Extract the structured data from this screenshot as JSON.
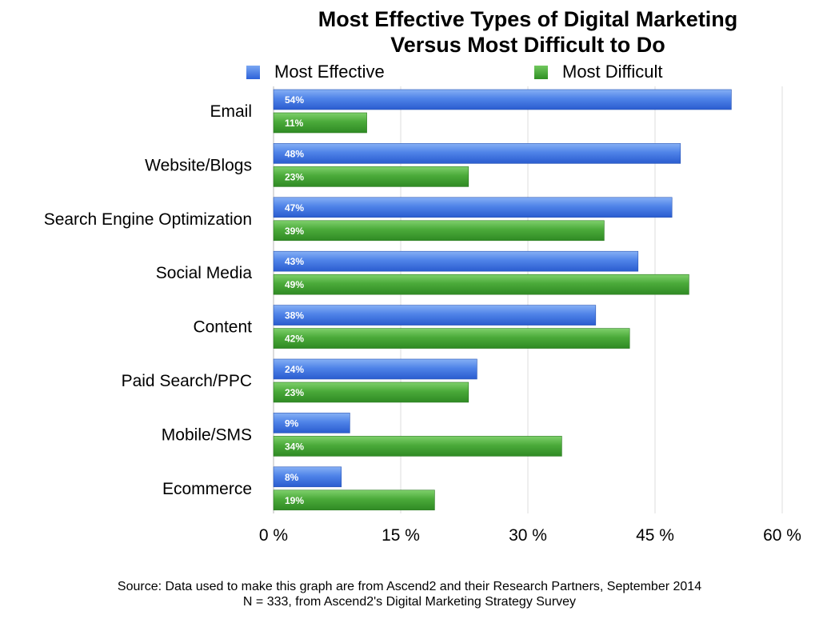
{
  "chart_data": {
    "type": "bar",
    "orientation": "horizontal",
    "title_line1": "Most Effective Types of Digital Marketing",
    "title_line2": "Versus Most Difficult to Do",
    "categories": [
      "Email",
      "Website/Blogs",
      "Search Engine Optimization",
      "Social Media",
      "Content",
      "Paid Search/PPC",
      "Mobile/SMS",
      "Ecommerce"
    ],
    "series": [
      {
        "name": "Most Effective",
        "color": "#3b6fdf",
        "values": [
          54,
          48,
          47,
          43,
          38,
          24,
          9,
          8
        ],
        "labels": [
          "54%",
          "48%",
          "47%",
          "43%",
          "38%",
          "24%",
          "9%",
          "8%"
        ]
      },
      {
        "name": "Most Difficult",
        "color": "#3f9f30",
        "values": [
          11,
          23,
          39,
          49,
          42,
          23,
          34,
          19
        ],
        "labels": [
          "11%",
          "23%",
          "39%",
          "49%",
          "42%",
          "23%",
          "34%",
          "19%"
        ]
      }
    ],
    "xlim": [
      0,
      60
    ],
    "xticks": [
      0,
      15,
      30,
      45,
      60
    ],
    "xtick_labels": [
      "0 %",
      "15 %",
      "30 %",
      "45 %",
      "60 %"
    ],
    "grid": true,
    "legend_position": "top"
  },
  "source": {
    "line1": "Source: Data used to make this graph are from Ascend2 and their Research Partners, September 2014",
    "line2": "N = 333, from Ascend2's Digital Marketing Strategy Survey"
  }
}
